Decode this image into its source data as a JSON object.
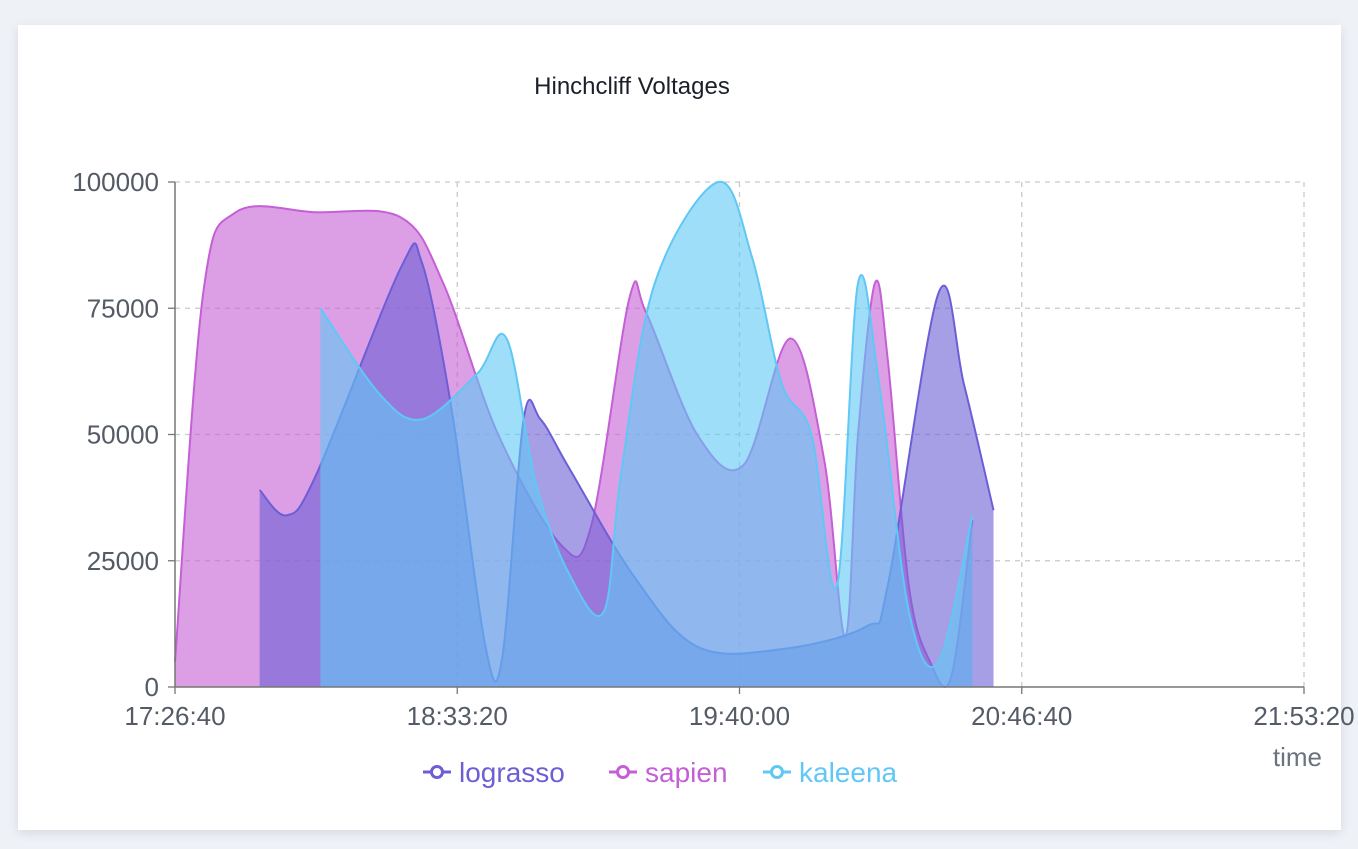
{
  "chart_data": {
    "type": "area",
    "title": "Hinchcliff Voltages",
    "xlabel": "time",
    "ylabel": "",
    "x_range": [
      "17:26:40",
      "21:53:20"
    ],
    "x_ticks": [
      "17:26:40",
      "18:33:20",
      "19:40:00",
      "20:46:40",
      "21:53:20"
    ],
    "ylim": [
      0,
      100000
    ],
    "y_ticks": [
      0,
      25000,
      50000,
      75000,
      100000
    ],
    "grid": true,
    "legend_position": "bottom",
    "series": [
      {
        "name": "sapien",
        "color": "#c45fd6",
        "points": [
          [
            "17:26:40",
            5000
          ],
          [
            "17:33:20",
            78000
          ],
          [
            "17:41:00",
            94000
          ],
          [
            "18:00:00",
            94000
          ],
          [
            "18:20:00",
            93000
          ],
          [
            "18:30:00",
            80000
          ],
          [
            "18:43:00",
            50000
          ],
          [
            "18:58:00",
            28000
          ],
          [
            "19:05:00",
            32000
          ],
          [
            "19:14:00",
            77000
          ],
          [
            "19:18:00",
            74000
          ],
          [
            "19:30:00",
            50000
          ],
          [
            "19:41:00",
            44000
          ],
          [
            "19:52:00",
            69000
          ],
          [
            "20:00:00",
            45000
          ],
          [
            "20:05:00",
            10000
          ],
          [
            "20:08:00",
            50000
          ],
          [
            "20:12:00",
            80000
          ],
          [
            "20:15:00",
            65000
          ],
          [
            "20:20:00",
            20000
          ],
          [
            "20:25:00",
            5000
          ],
          [
            "20:30:00",
            2000
          ],
          [
            "20:35:00",
            33000
          ]
        ]
      },
      {
        "name": "lograsso",
        "color": "#6c5fd6",
        "points": [
          [
            "17:46:40",
            39000
          ],
          [
            "17:53:00",
            34000
          ],
          [
            "18:00:00",
            42000
          ],
          [
            "18:20:00",
            83000
          ],
          [
            "18:25:00",
            84000
          ],
          [
            "18:32:00",
            55000
          ],
          [
            "18:40:00",
            8000
          ],
          [
            "18:44:00",
            6000
          ],
          [
            "18:49:00",
            53000
          ],
          [
            "18:53:00",
            53000
          ],
          [
            "19:00:00",
            43000
          ],
          [
            "19:15:00",
            22000
          ],
          [
            "19:30:00",
            8000
          ],
          [
            "19:50:00",
            7500
          ],
          [
            "20:10:00",
            12000
          ],
          [
            "20:15:00",
            20000
          ],
          [
            "20:27:00",
            78000
          ],
          [
            "20:33:00",
            60000
          ],
          [
            "20:40:00",
            35000
          ]
        ]
      },
      {
        "name": "kaleena",
        "color": "#5fc8f5",
        "points": [
          [
            "18:01:00",
            75000
          ],
          [
            "18:15:00",
            58000
          ],
          [
            "18:25:00",
            53000
          ],
          [
            "18:38:00",
            62000
          ],
          [
            "18:45:00",
            69000
          ],
          [
            "18:52:00",
            40000
          ],
          [
            "19:00:00",
            22000
          ],
          [
            "19:08:00",
            15000
          ],
          [
            "19:12:00",
            42000
          ],
          [
            "19:20:00",
            80000
          ],
          [
            "19:35:00",
            100000
          ],
          [
            "19:43:00",
            85000
          ],
          [
            "19:50:00",
            60000
          ],
          [
            "19:57:00",
            50000
          ],
          [
            "20:03:00",
            20000
          ],
          [
            "20:08:00",
            80000
          ],
          [
            "20:13:00",
            60000
          ],
          [
            "20:20:00",
            15000
          ],
          [
            "20:27:00",
            5000
          ],
          [
            "20:35:00",
            34000
          ]
        ]
      }
    ]
  }
}
